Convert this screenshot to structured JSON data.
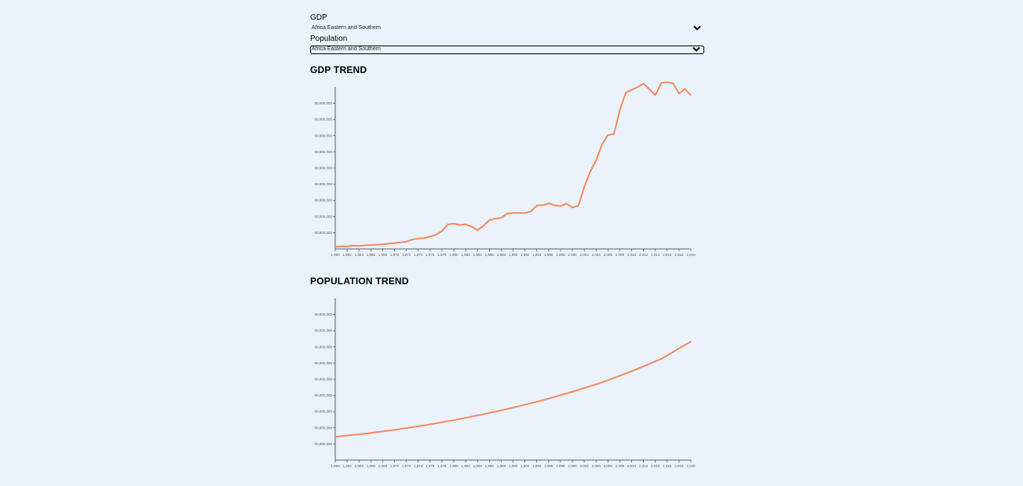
{
  "controls": {
    "gdp_label": "GDP",
    "gdp_selected": "Africa Eastern and Southern",
    "population_label": "Population",
    "population_selected": "Africa Eastern and Southern"
  },
  "icons": {
    "dropdown": "chevron-down-icon"
  },
  "colors": {
    "line": "#f4895d",
    "background": "#eaf2fc"
  },
  "chart_data": [
    {
      "type": "line",
      "title": "GDP TREND",
      "series_color": "#f4895d",
      "x": [
        1960,
        1961,
        1962,
        1963,
        1964,
        1965,
        1966,
        1967,
        1968,
        1969,
        1970,
        1971,
        1972,
        1973,
        1974,
        1975,
        1976,
        1977,
        1978,
        1979,
        1980,
        1981,
        1982,
        1983,
        1984,
        1985,
        1986,
        1987,
        1988,
        1989,
        1990,
        1991,
        1992,
        1993,
        1994,
        1995,
        1996,
        1997,
        1998,
        1999,
        2000,
        2001,
        2002,
        2003,
        2004,
        2005,
        2006,
        2007,
        2008,
        2009,
        2010,
        2011,
        2012,
        2013,
        2014,
        2015,
        2016,
        2017,
        2018,
        2019,
        2020
      ],
      "values": [
        0.7,
        0.8,
        0.8,
        1.0,
        0.9,
        1.1,
        1.2,
        1.3,
        1.4,
        1.6,
        1.8,
        2.0,
        2.2,
        2.9,
        3.2,
        3.3,
        3.8,
        4.4,
        5.5,
        7.6,
        7.8,
        7.4,
        7.6,
        6.9,
        5.8,
        7.1,
        8.9,
        9.3,
        9.6,
        10.9,
        11.1,
        11.1,
        11.1,
        11.6,
        13.4,
        13.5,
        14.1,
        13.5,
        13.2,
        14.0,
        12.8,
        13.3,
        19.1,
        23.8,
        27.3,
        32.3,
        35.2,
        35.5,
        42.8,
        48.2,
        49.2,
        50.0,
        51.1,
        49.4,
        47.5,
        51.3,
        51.5,
        51.2,
        48.0,
        49.5,
        47.4
      ],
      "x_ticks": [
        "1,960",
        "1,962",
        "1,964",
        "1,966",
        "1,968",
        "1,970",
        "1,972",
        "1,974",
        "1,976",
        "1,978",
        "1,980",
        "1,982",
        "1,984",
        "1,986",
        "1,988",
        "1,990",
        "1,992",
        "1,994",
        "1,996",
        "1,998",
        "2,000",
        "2,002",
        "2,004",
        "2,006",
        "2,008",
        "2,010",
        "2,012",
        "2,014",
        "2,016",
        "2,018",
        "2,020"
      ],
      "y_ticks": [
        "00,000,000",
        "00,000,000",
        "00,000,000",
        "00,000,000",
        "00,000,000",
        "00,000,000",
        "00,000,000",
        "00,000,000",
        "00,000,000"
      ],
      "ylim": [
        0,
        50
      ]
    },
    {
      "type": "line",
      "title": "POPULATION TREND",
      "series_color": "#f4895d",
      "x": [
        1960,
        1965,
        1970,
        1975,
        1980,
        1985,
        1990,
        1995,
        2000,
        2005,
        2010,
        2015,
        2020
      ],
      "values": [
        130,
        147,
        168,
        193,
        222,
        255,
        292,
        333,
        380,
        432,
        494,
        563,
        660
      ],
      "x_ticks": [
        "1,960",
        "1,962",
        "1,964",
        "1,966",
        "1,968",
        "1,970",
        "1,972",
        "1,974",
        "1,976",
        "1,978",
        "1,980",
        "1,982",
        "1,984",
        "1,986",
        "1,988",
        "1,990",
        "1,992",
        "1,994",
        "1,996",
        "1,998",
        "2,000",
        "2,002",
        "2,004",
        "2,006",
        "2,008",
        "2,010",
        "2,012",
        "2,014",
        "2,016",
        "2,018",
        "2,020"
      ],
      "y_ticks": [
        "00,000,000",
        "00,000,000",
        "00,000,000",
        "00,000,000",
        "00,000,000",
        "00,000,000",
        "00,000,000",
        "00,000,000",
        "00,000,000"
      ],
      "ylim": [
        0,
        900
      ]
    }
  ]
}
